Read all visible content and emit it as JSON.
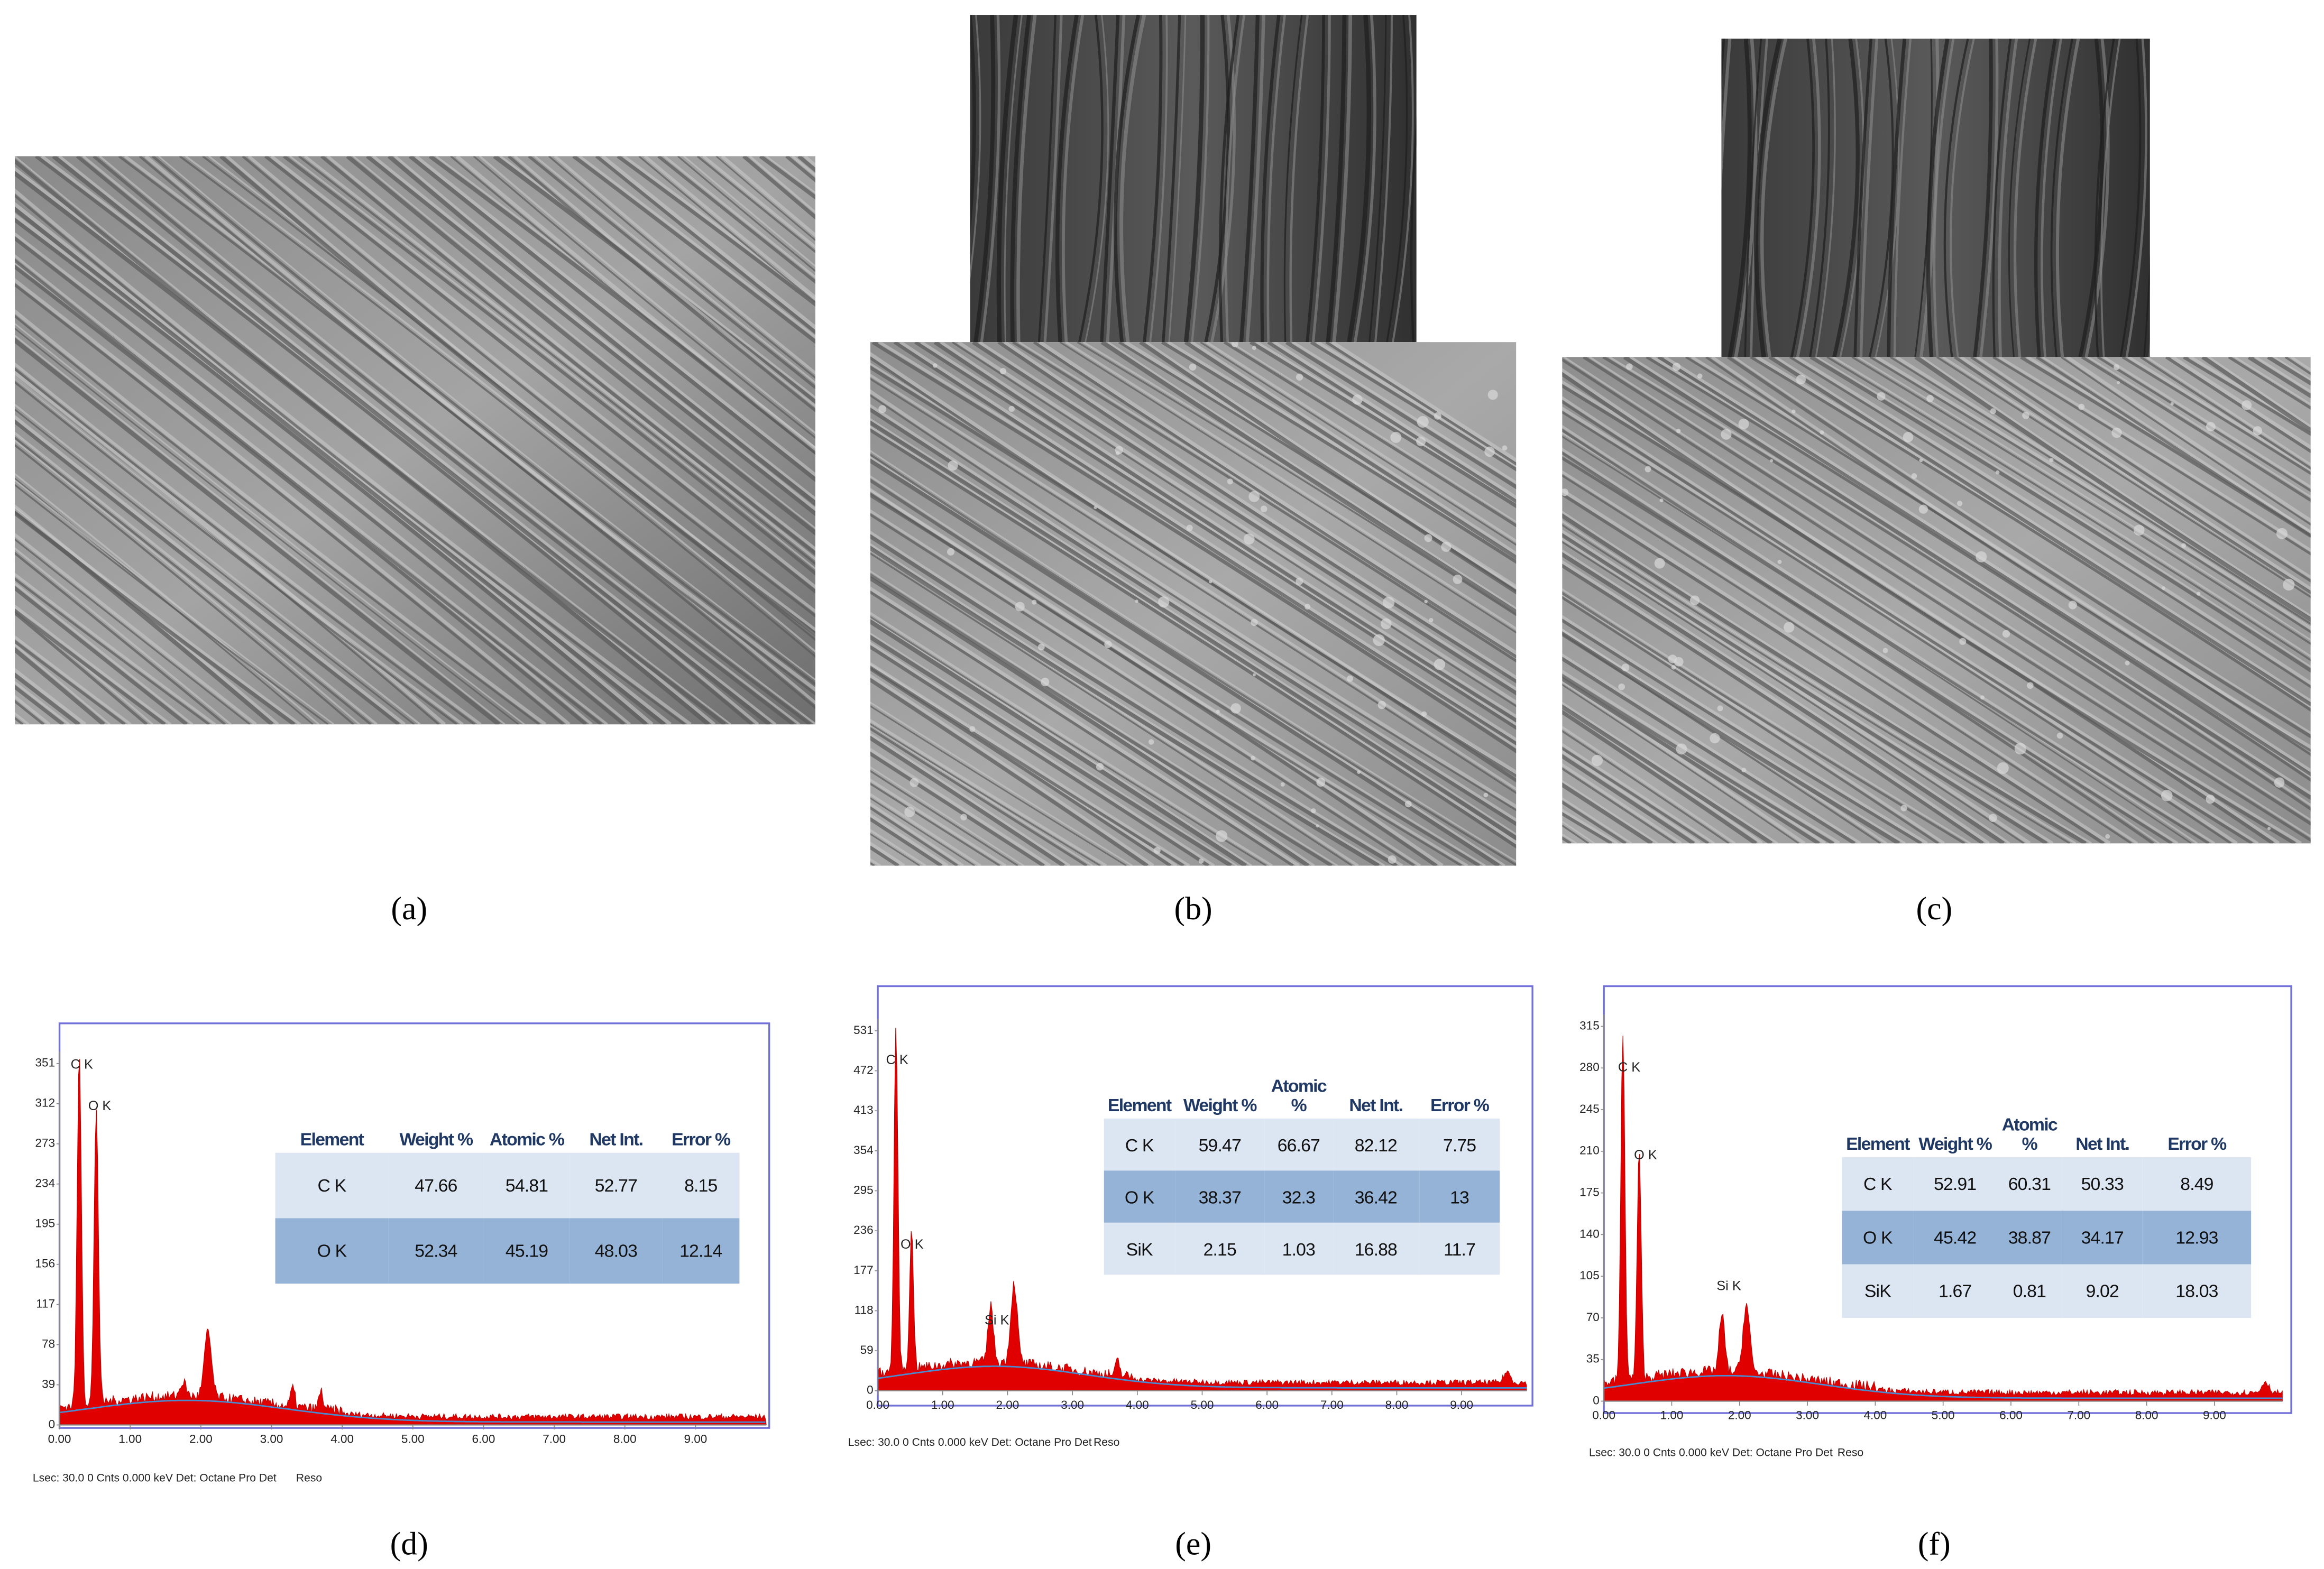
{
  "panels": [
    {
      "label": "(a)"
    },
    {
      "label": "(b)"
    },
    {
      "label": "(c)"
    }
  ],
  "spectra": [
    {
      "label": "(d)",
      "yticks": [
        351,
        312,
        273,
        234,
        195,
        156,
        117,
        78,
        39,
        0
      ],
      "xticks": [
        "0.00",
        "1.00",
        "2.00",
        "3.00",
        "4.00",
        "5.00",
        "6.00",
        "7.00",
        "8.00",
        "9.00"
      ],
      "peaks": [
        "C K",
        "O K"
      ],
      "footer": "Lsec: 30.0 0 Cnts  0.000 keV Det: Octane Pro Det",
      "reso": "Reso",
      "table": {
        "header": [
          "Element",
          "Weight %",
          "Atomic %",
          "Net Int.",
          "Error %"
        ],
        "rows": [
          [
            "C K",
            "47.66",
            "54.81",
            "52.77",
            "8.15"
          ],
          [
            "O K",
            "52.34",
            "45.19",
            "48.03",
            "12.14"
          ]
        ]
      }
    },
    {
      "label": "(e)",
      "yticks": [
        531,
        472,
        413,
        354,
        295,
        236,
        177,
        118,
        59,
        0
      ],
      "xticks": [
        "0.00",
        "1.00",
        "2.00",
        "3.00",
        "4.00",
        "5.00",
        "6.00",
        "7.00",
        "8.00",
        "9.00"
      ],
      "peaks": [
        "C K",
        "O K",
        "Si K"
      ],
      "footer": "Lsec: 30.0 0 Cnts  0.000 keV Det: Octane Pro Det",
      "reso": "Reso",
      "table": {
        "header": [
          "Element",
          "Weight %",
          "Atomic %",
          "Net Int.",
          "Error %"
        ],
        "rows": [
          [
            "C K",
            "59.47",
            "66.67",
            "82.12",
            "7.75"
          ],
          [
            "O K",
            "38.37",
            "32.3",
            "36.42",
            "13"
          ],
          [
            "SiK",
            "2.15",
            "1.03",
            "16.88",
            "11.7"
          ]
        ]
      }
    },
    {
      "label": "(f)",
      "yticks": [
        315,
        280,
        245,
        210,
        175,
        140,
        105,
        70,
        35,
        0
      ],
      "xticks": [
        "0.00",
        "1.00",
        "2.00",
        "3.00",
        "4.00",
        "5.00",
        "6.00",
        "7.00",
        "8.00",
        "9.00"
      ],
      "peaks": [
        "C K",
        "O K",
        "Si K"
      ],
      "footer": "Lsec: 30.0 0 Cnts  0.000 keV Det: Octane Pro Det",
      "reso": "Reso",
      "table": {
        "header": [
          "Element",
          "Weight %",
          "Atomic %",
          "Net Int.",
          "Error %"
        ],
        "rows": [
          [
            "C K",
            "52.91",
            "60.31",
            "50.33",
            "8.49"
          ],
          [
            "O K",
            "45.42",
            "38.87",
            "34.17",
            "12.93"
          ],
          [
            "SiK",
            "1.67",
            "0.81",
            "9.02",
            "18.03"
          ]
        ]
      }
    }
  ]
}
